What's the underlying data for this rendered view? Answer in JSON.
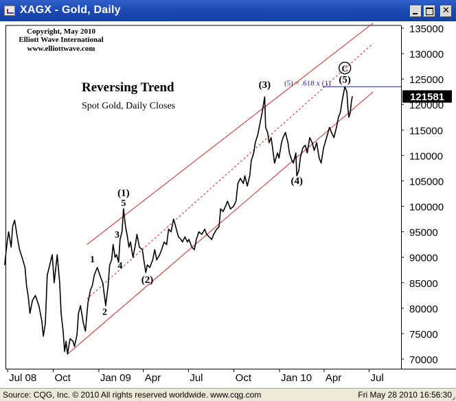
{
  "window": {
    "title": "XAGX - Gold, Daily",
    "close_glyph": "✕"
  },
  "icons": {
    "app": "chart-icon",
    "minimize": "minimize-icon",
    "maximize": "maximize-icon",
    "close": "close-icon"
  },
  "copyright": [
    "Copyright, May 2010",
    "Elliott Wave International",
    "www.elliottwave.com"
  ],
  "status": {
    "source": "Source: CQG, Inc. © 2010 All rights reserved worldwide. www.cqg.com",
    "datetime": "Fri May 28 2010 16:56:30"
  },
  "colors": {
    "channel": "#e02020",
    "price": "#000000",
    "fib": "#1a1aa0",
    "last_price_box": "#000000"
  },
  "chart_data": {
    "type": "line",
    "title": "Reversing Trend",
    "subtitle": "Spot Gold, Daily Closes",
    "y_ticks": [
      "135000",
      "130000",
      "125000",
      "120000",
      "115000",
      "110000",
      "105000",
      "100000",
      "95000",
      "90000",
      "85000",
      "80000",
      "75000",
      "70000"
    ],
    "x_ticks": [
      "Jul 08",
      "Oct",
      "Jan 09",
      "Apr",
      "Jul",
      "Oct",
      "Jan 10",
      "Apr",
      "Jul"
    ],
    "ylim": [
      68500,
      137000
    ],
    "last_price": "121581",
    "annotation": "(5) = .618 x (1)",
    "scale": "linear",
    "grid": false,
    "series": [
      {
        "values": [
          {
            "x": "2008-06-25",
            "y": 88500
          },
          {
            "x": "2008-06-30",
            "y": 93000
          },
          {
            "x": "2008-07-03",
            "y": 95000
          },
          {
            "x": "2008-07-08",
            "y": 92000
          },
          {
            "x": "2008-07-11",
            "y": 96000
          },
          {
            "x": "2008-07-15",
            "y": 97300
          },
          {
            "x": "2008-07-18",
            "y": 95500
          },
          {
            "x": "2008-07-22",
            "y": 93000
          },
          {
            "x": "2008-07-25",
            "y": 91500
          },
          {
            "x": "2008-07-30",
            "y": 90000
          },
          {
            "x": "2008-08-05",
            "y": 88000
          },
          {
            "x": "2008-08-08",
            "y": 84500
          },
          {
            "x": "2008-08-12",
            "y": 82000
          },
          {
            "x": "2008-08-15",
            "y": 79000
          },
          {
            "x": "2008-08-20",
            "y": 81500
          },
          {
            "x": "2008-08-26",
            "y": 82500
          },
          {
            "x": "2008-09-02",
            "y": 80500
          },
          {
            "x": "2008-09-08",
            "y": 77500
          },
          {
            "x": "2008-09-11",
            "y": 74500
          },
          {
            "x": "2008-09-15",
            "y": 77000
          },
          {
            "x": "2008-09-19",
            "y": 86500
          },
          {
            "x": "2008-09-24",
            "y": 88500
          },
          {
            "x": "2008-09-29",
            "y": 90500
          },
          {
            "x": "2008-10-03",
            "y": 85000
          },
          {
            "x": "2008-10-09",
            "y": 90500
          },
          {
            "x": "2008-10-14",
            "y": 85000
          },
          {
            "x": "2008-10-17",
            "y": 79000
          },
          {
            "x": "2008-10-21",
            "y": 75500
          },
          {
            "x": "2008-10-24",
            "y": 71500
          },
          {
            "x": "2008-10-27",
            "y": 73500
          },
          {
            "x": "2008-10-30",
            "y": 71000
          },
          {
            "x": "2008-11-04",
            "y": 74000
          },
          {
            "x": "2008-11-10",
            "y": 73500
          },
          {
            "x": "2008-11-13",
            "y": 72500
          },
          {
            "x": "2008-11-18",
            "y": 74800
          },
          {
            "x": "2008-11-21",
            "y": 79000
          },
          {
            "x": "2008-11-25",
            "y": 80500
          },
          {
            "x": "2008-12-01",
            "y": 77000
          },
          {
            "x": "2008-12-05",
            "y": 75500
          },
          {
            "x": "2008-12-10",
            "y": 81000
          },
          {
            "x": "2008-12-15",
            "y": 83500
          },
          {
            "x": "2008-12-19",
            "y": 84500
          },
          {
            "x": "2008-12-23",
            "y": 86500
          },
          {
            "x": "2008-12-29",
            "y": 88000
          },
          {
            "x": "2009-01-05",
            "y": 86000
          },
          {
            "x": "2009-01-09",
            "y": 85000
          },
          {
            "x": "2009-01-13",
            "y": 82000
          },
          {
            "x": "2009-01-15",
            "y": 80500
          },
          {
            "x": "2009-01-20",
            "y": 84500
          },
          {
            "x": "2009-01-23",
            "y": 88500
          },
          {
            "x": "2009-01-27",
            "y": 89500
          },
          {
            "x": "2009-01-30",
            "y": 92500
          },
          {
            "x": "2009-02-03",
            "y": 90000
          },
          {
            "x": "2009-02-06",
            "y": 90500
          },
          {
            "x": "2009-02-10",
            "y": 89000
          },
          {
            "x": "2009-02-13",
            "y": 93500
          },
          {
            "x": "2009-02-17",
            "y": 95000
          },
          {
            "x": "2009-02-20",
            "y": 99500
          },
          {
            "x": "2009-02-24",
            "y": 96000
          },
          {
            "x": "2009-02-27",
            "y": 94500
          },
          {
            "x": "2009-03-03",
            "y": 92000
          },
          {
            "x": "2009-03-06",
            "y": 93000
          },
          {
            "x": "2009-03-11",
            "y": 90000
          },
          {
            "x": "2009-03-16",
            "y": 92500
          },
          {
            "x": "2009-03-19",
            "y": 94500
          },
          {
            "x": "2009-03-24",
            "y": 92000
          },
          {
            "x": "2009-03-30",
            "y": 91500
          },
          {
            "x": "2009-04-02",
            "y": 89500
          },
          {
            "x": "2009-04-06",
            "y": 87000
          },
          {
            "x": "2009-04-09",
            "y": 88500
          },
          {
            "x": "2009-04-14",
            "y": 88000
          },
          {
            "x": "2009-04-20",
            "y": 89500
          },
          {
            "x": "2009-04-24",
            "y": 91500
          },
          {
            "x": "2009-04-28",
            "y": 89500
          },
          {
            "x": "2009-05-04",
            "y": 90500
          },
          {
            "x": "2009-05-08",
            "y": 91500
          },
          {
            "x": "2009-05-13",
            "y": 93000
          },
          {
            "x": "2009-05-18",
            "y": 92500
          },
          {
            "x": "2009-05-22",
            "y": 95500
          },
          {
            "x": "2009-05-27",
            "y": 95000
          },
          {
            "x": "2009-06-01",
            "y": 97500
          },
          {
            "x": "2009-06-04",
            "y": 96500
          },
          {
            "x": "2009-06-08",
            "y": 95000
          },
          {
            "x": "2009-06-11",
            "y": 94000
          },
          {
            "x": "2009-06-16",
            "y": 93500
          },
          {
            "x": "2009-06-19",
            "y": 93000
          },
          {
            "x": "2009-06-24",
            "y": 94000
          },
          {
            "x": "2009-06-29",
            "y": 93000
          },
          {
            "x": "2009-07-02",
            "y": 93500
          },
          {
            "x": "2009-07-08",
            "y": 92000
          },
          {
            "x": "2009-07-13",
            "y": 91500
          },
          {
            "x": "2009-07-17",
            "y": 93500
          },
          {
            "x": "2009-07-22",
            "y": 95000
          },
          {
            "x": "2009-07-28",
            "y": 94500
          },
          {
            "x": "2009-08-03",
            "y": 95500
          },
          {
            "x": "2009-08-07",
            "y": 94500
          },
          {
            "x": "2009-08-12",
            "y": 94000
          },
          {
            "x": "2009-08-17",
            "y": 93500
          },
          {
            "x": "2009-08-21",
            "y": 94500
          },
          {
            "x": "2009-08-27",
            "y": 95500
          },
          {
            "x": "2009-09-01",
            "y": 96000
          },
          {
            "x": "2009-09-04",
            "y": 99500
          },
          {
            "x": "2009-09-09",
            "y": 99000
          },
          {
            "x": "2009-09-14",
            "y": 100000
          },
          {
            "x": "2009-09-18",
            "y": 101000
          },
          {
            "x": "2009-09-24",
            "y": 99500
          },
          {
            "x": "2009-09-30",
            "y": 100000
          },
          {
            "x": "2009-10-05",
            "y": 101000
          },
          {
            "x": "2009-10-09",
            "y": 104500
          },
          {
            "x": "2009-10-14",
            "y": 105500
          },
          {
            "x": "2009-10-20",
            "y": 104500
          },
          {
            "x": "2009-10-23",
            "y": 106000
          },
          {
            "x": "2009-10-28",
            "y": 104000
          },
          {
            "x": "2009-11-02",
            "y": 106000
          },
          {
            "x": "2009-11-05",
            "y": 109000
          },
          {
            "x": "2009-11-10",
            "y": 110500
          },
          {
            "x": "2009-11-13",
            "y": 112500
          },
          {
            "x": "2009-11-18",
            "y": 114000
          },
          {
            "x": "2009-11-23",
            "y": 116500
          },
          {
            "x": "2009-11-27",
            "y": 118500
          },
          {
            "x": "2009-12-02",
            "y": 121500
          },
          {
            "x": "2009-12-04",
            "y": 115500
          },
          {
            "x": "2009-12-08",
            "y": 114500
          },
          {
            "x": "2009-12-11",
            "y": 112500
          },
          {
            "x": "2009-12-15",
            "y": 113500
          },
          {
            "x": "2009-12-18",
            "y": 111500
          },
          {
            "x": "2009-12-22",
            "y": 108500
          },
          {
            "x": "2009-12-28",
            "y": 110500
          },
          {
            "x": "2009-12-31",
            "y": 109500
          },
          {
            "x": "2010-01-05",
            "y": 112500
          },
          {
            "x": "2010-01-08",
            "y": 113500
          },
          {
            "x": "2010-01-13",
            "y": 114500
          },
          {
            "x": "2010-01-18",
            "y": 112500
          },
          {
            "x": "2010-01-21",
            "y": 110500
          },
          {
            "x": "2010-01-26",
            "y": 109000
          },
          {
            "x": "2010-01-29",
            "y": 108500
          },
          {
            "x": "2010-02-03",
            "y": 110500
          },
          {
            "x": "2010-02-05",
            "y": 106000
          },
          {
            "x": "2010-02-09",
            "y": 107000
          },
          {
            "x": "2010-02-12",
            "y": 109500
          },
          {
            "x": "2010-02-17",
            "y": 111500
          },
          {
            "x": "2010-02-22",
            "y": 112000
          },
          {
            "x": "2010-02-26",
            "y": 110500
          },
          {
            "x": "2010-03-03",
            "y": 113500
          },
          {
            "x": "2010-03-08",
            "y": 112500
          },
          {
            "x": "2010-03-12",
            "y": 111000
          },
          {
            "x": "2010-03-17",
            "y": 112500
          },
          {
            "x": "2010-03-22",
            "y": 109500
          },
          {
            "x": "2010-03-26",
            "y": 108500
          },
          {
            "x": "2010-03-31",
            "y": 111500
          },
          {
            "x": "2010-04-06",
            "y": 113500
          },
          {
            "x": "2010-04-12",
            "y": 115500
          },
          {
            "x": "2010-04-16",
            "y": 114500
          },
          {
            "x": "2010-04-21",
            "y": 113500
          },
          {
            "x": "2010-04-26",
            "y": 115500
          },
          {
            "x": "2010-04-30",
            "y": 117500
          },
          {
            "x": "2010-05-04",
            "y": 118500
          },
          {
            "x": "2010-05-07",
            "y": 120500
          },
          {
            "x": "2010-05-11",
            "y": 122500
          },
          {
            "x": "2010-05-13",
            "y": 123500
          },
          {
            "x": "2010-05-17",
            "y": 122500
          },
          {
            "x": "2010-05-19",
            "y": 119500
          },
          {
            "x": "2010-05-21",
            "y": 117500
          },
          {
            "x": "2010-05-24",
            "y": 118500
          },
          {
            "x": "2010-05-26",
            "y": 120500
          },
          {
            "x": "2010-05-28",
            "y": 121581
          }
        ]
      }
    ],
    "wave_labels": [
      {
        "text": "(1)",
        "x": "2009-02-20",
        "y": 102000
      },
      {
        "text": "5",
        "x": "2009-02-20",
        "y": 100100
      },
      {
        "text": "1",
        "x": "2008-12-19",
        "y": 89000
      },
      {
        "text": "2",
        "x": "2009-01-13",
        "y": 78700
      },
      {
        "text": "3",
        "x": "2009-02-07",
        "y": 93900
      },
      {
        "text": "4",
        "x": "2009-02-13",
        "y": 87800
      },
      {
        "text": "(2)",
        "x": "2009-04-09",
        "y": 85000
      },
      {
        "text": "(3)",
        "x": "2009-12-02",
        "y": 123300
      },
      {
        "text": "(4)",
        "x": "2010-02-05",
        "y": 104400
      },
      {
        "text": "(5)",
        "x": "2010-05-13",
        "y": 124300
      },
      {
        "text": "C",
        "x": "2010-05-13",
        "y": 126500
      }
    ],
    "channel": {
      "upper": [
        {
          "x": "2008-12-08",
          "y": 92500
        },
        {
          "x": "2010-07-09",
          "y": 136000
        }
      ],
      "middle": [
        {
          "x": "2008-12-08",
          "y": 81800
        },
        {
          "x": "2010-07-09",
          "y": 132000
        }
      ],
      "lower": [
        {
          "x": "2008-10-30",
          "y": 71000
        },
        {
          "x": "2010-07-09",
          "y": 122500
        }
      ]
    },
    "fib_level": 123500
  }
}
